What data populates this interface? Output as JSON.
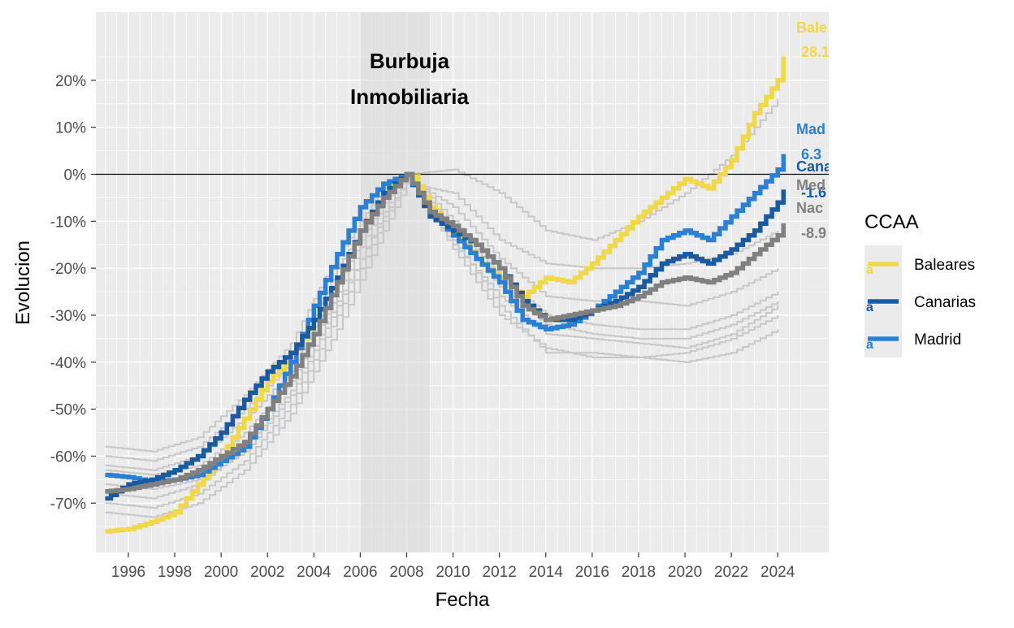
{
  "chart_data": {
    "type": "line",
    "title": "",
    "xlabel": "Fecha",
    "ylabel": "Evolucion",
    "xlim": [
      1994.6,
      2026.2
    ],
    "ylim": [
      -80.5,
      34.5
    ],
    "grid": true,
    "x_ticks": [
      1996,
      1998,
      2000,
      2002,
      2004,
      2006,
      2008,
      2010,
      2012,
      2014,
      2016,
      2018,
      2020,
      2022,
      2024
    ],
    "x_tick_labels": [
      "1996",
      "1998",
      "2000",
      "2002",
      "2004",
      "2006",
      "2008",
      "2010",
      "2012",
      "2014",
      "2016",
      "2018",
      "2020",
      "2022",
      "2024"
    ],
    "y_ticks": [
      20,
      10,
      0,
      -10,
      -20,
      -30,
      -40,
      -50,
      -60,
      -70
    ],
    "y_tick_labels": [
      "20%",
      "10%",
      "0%",
      "-10%",
      "-20%",
      "-30%",
      "-40%",
      "-50%",
      "-60%",
      "-70%"
    ],
    "shaded_period": {
      "start": 2006.0,
      "end": 2009.0,
      "label_line1": "Burbuja",
      "label_line2": "Inmobiliaria"
    },
    "reference_line_y": 0,
    "series": [
      {
        "name": "Baleares",
        "color": "#f0d84a",
        "end_label": "Bale",
        "end_value_label": "28.1",
        "points": [
          [
            1995,
            -76
          ],
          [
            1996,
            -75.5
          ],
          [
            1997,
            -74
          ],
          [
            1998,
            -72
          ],
          [
            1999,
            -66
          ],
          [
            2000,
            -60
          ],
          [
            2001,
            -52
          ],
          [
            2002,
            -44
          ],
          [
            2003,
            -39
          ],
          [
            2004,
            -31
          ],
          [
            2005,
            -22
          ],
          [
            2006,
            -12
          ],
          [
            2007,
            -4
          ],
          [
            2007.5,
            -1
          ],
          [
            2008.2,
            0
          ],
          [
            2009,
            -7
          ],
          [
            2010,
            -12
          ],
          [
            2011,
            -18
          ],
          [
            2012,
            -22
          ],
          [
            2013,
            -26
          ],
          [
            2014,
            -22
          ],
          [
            2015,
            -23
          ],
          [
            2016,
            -19
          ],
          [
            2017,
            -14
          ],
          [
            2018,
            -9
          ],
          [
            2019,
            -5
          ],
          [
            2020,
            -1
          ],
          [
            2021,
            -3
          ],
          [
            2022,
            3
          ],
          [
            2023,
            13
          ],
          [
            2024,
            20
          ],
          [
            2024.4,
            28.1
          ]
        ]
      },
      {
        "name": "Canarias",
        "color": "#1a5aa0",
        "end_label": "Cana",
        "end_value_label": "-1.6",
        "points": [
          [
            1995,
            -69
          ],
          [
            1996,
            -66
          ],
          [
            1997,
            -65
          ],
          [
            1998,
            -63
          ],
          [
            1999,
            -60
          ],
          [
            2000,
            -55
          ],
          [
            2001,
            -48
          ],
          [
            2002,
            -42
          ],
          [
            2003,
            -38
          ],
          [
            2004,
            -31
          ],
          [
            2005,
            -22
          ],
          [
            2006,
            -12
          ],
          [
            2007,
            -4
          ],
          [
            2008,
            0
          ],
          [
            2009,
            -9
          ],
          [
            2010,
            -12
          ],
          [
            2011,
            -15
          ],
          [
            2012,
            -20
          ],
          [
            2013,
            -27
          ],
          [
            2014,
            -31
          ],
          [
            2015,
            -31
          ],
          [
            2016,
            -29
          ],
          [
            2017,
            -27
          ],
          [
            2018,
            -24
          ],
          [
            2019,
            -19
          ],
          [
            2020,
            -17
          ],
          [
            2021,
            -19
          ],
          [
            2022,
            -16
          ],
          [
            2023,
            -12
          ],
          [
            2024,
            -6
          ],
          [
            2024.4,
            -1.6
          ]
        ]
      },
      {
        "name": "Madrid",
        "color": "#2b7fd4",
        "end_label": "Mad",
        "end_value_label": "6.3",
        "points": [
          [
            1995,
            -64
          ],
          [
            1996,
            -64.5
          ],
          [
            1997,
            -65.5
          ],
          [
            1998,
            -65
          ],
          [
            1999,
            -64
          ],
          [
            2000,
            -61
          ],
          [
            2001,
            -58
          ],
          [
            2002,
            -50
          ],
          [
            2003,
            -40
          ],
          [
            2004,
            -28
          ],
          [
            2005,
            -17
          ],
          [
            2006,
            -7
          ],
          [
            2007,
            -2
          ],
          [
            2008,
            0
          ],
          [
            2009,
            -8
          ],
          [
            2010,
            -13
          ],
          [
            2011,
            -18
          ],
          [
            2012,
            -23
          ],
          [
            2013,
            -31
          ],
          [
            2014,
            -33
          ],
          [
            2015,
            -32
          ],
          [
            2016,
            -29
          ],
          [
            2017,
            -25
          ],
          [
            2018,
            -21
          ],
          [
            2019,
            -14
          ],
          [
            2020,
            -12
          ],
          [
            2021,
            -14
          ],
          [
            2022,
            -9
          ],
          [
            2023,
            -4
          ],
          [
            2024,
            1
          ],
          [
            2024.4,
            6.3
          ]
        ]
      },
      {
        "name": "Nacional",
        "color": "#808080",
        "end_label": "Nac",
        "end_value_label": "-8.9",
        "points": [
          [
            1995,
            -67.5
          ],
          [
            1996,
            -67
          ],
          [
            1997,
            -66
          ],
          [
            1998,
            -65
          ],
          [
            1999,
            -63
          ],
          [
            2000,
            -60
          ],
          [
            2001,
            -57
          ],
          [
            2002,
            -50
          ],
          [
            2003,
            -43
          ],
          [
            2004,
            -34
          ],
          [
            2005,
            -23
          ],
          [
            2006,
            -12
          ],
          [
            2007,
            -5
          ],
          [
            2008,
            0
          ],
          [
            2009,
            -8
          ],
          [
            2010,
            -11
          ],
          [
            2011,
            -15
          ],
          [
            2012,
            -20
          ],
          [
            2013,
            -28
          ],
          [
            2014,
            -31
          ],
          [
            2015,
            -30
          ],
          [
            2016,
            -29
          ],
          [
            2017,
            -28
          ],
          [
            2018,
            -26
          ],
          [
            2019,
            -23
          ],
          [
            2020,
            -22
          ],
          [
            2021,
            -23
          ],
          [
            2022,
            -21
          ],
          [
            2023,
            -17
          ],
          [
            2024,
            -13
          ],
          [
            2024.4,
            -8.9
          ]
        ]
      },
      {
        "name": "Media",
        "color": "#808080",
        "end_label": "Med",
        "end_value_label": "",
        "points": []
      }
    ],
    "background_series": [
      [
        [
          1995,
          -60
        ],
        [
          1997,
          -61
        ],
        [
          1999,
          -58
        ],
        [
          2001,
          -50
        ],
        [
          2003,
          -40
        ],
        [
          2005,
          -20
        ],
        [
          2007,
          -4
        ],
        [
          2008,
          0
        ],
        [
          2010,
          -14
        ],
        [
          2012,
          -28
        ],
        [
          2014,
          -38
        ],
        [
          2016,
          -38
        ],
        [
          2018,
          -39
        ],
        [
          2020,
          -38
        ],
        [
          2022,
          -35
        ],
        [
          2024,
          -30
        ]
      ],
      [
        [
          1995,
          -63
        ],
        [
          1997,
          -64
        ],
        [
          1999,
          -62
        ],
        [
          2001,
          -55
        ],
        [
          2003,
          -44
        ],
        [
          2005,
          -25
        ],
        [
          2007,
          -6
        ],
        [
          2008,
          0
        ],
        [
          2010,
          -16
        ],
        [
          2012,
          -30
        ],
        [
          2014,
          -37
        ],
        [
          2016,
          -39
        ],
        [
          2018,
          -39
        ],
        [
          2020,
          -40
        ],
        [
          2022,
          -38
        ],
        [
          2024,
          -33
        ]
      ],
      [
        [
          1995,
          -66
        ],
        [
          1997,
          -67
        ],
        [
          1999,
          -65
        ],
        [
          2001,
          -59
        ],
        [
          2003,
          -47
        ],
        [
          2005,
          -28
        ],
        [
          2007,
          -8
        ],
        [
          2008,
          0
        ],
        [
          2010,
          -12
        ],
        [
          2012,
          -24
        ],
        [
          2014,
          -32
        ],
        [
          2016,
          -34
        ],
        [
          2018,
          -35
        ],
        [
          2020,
          -35
        ],
        [
          2022,
          -32
        ],
        [
          2024,
          -27
        ]
      ],
      [
        [
          1995,
          -70
        ],
        [
          1997,
          -71
        ],
        [
          1999,
          -68
        ],
        [
          2001,
          -61
        ],
        [
          2003,
          -49
        ],
        [
          2005,
          -30
        ],
        [
          2007,
          -10
        ],
        [
          2008,
          -1
        ],
        [
          2010,
          -7
        ],
        [
          2012,
          -18
        ],
        [
          2014,
          -26
        ],
        [
          2016,
          -27
        ],
        [
          2018,
          -27
        ],
        [
          2020,
          -28
        ],
        [
          2022,
          -25
        ],
        [
          2024,
          -20
        ]
      ],
      [
        [
          1995,
          -72
        ],
        [
          1997,
          -73
        ],
        [
          1999,
          -70
        ],
        [
          2001,
          -63
        ],
        [
          2003,
          -51
        ],
        [
          2005,
          -33
        ],
        [
          2007,
          -12
        ],
        [
          2008,
          -2
        ],
        [
          2010,
          -4
        ],
        [
          2012,
          -14
        ],
        [
          2014,
          -19
        ],
        [
          2016,
          -20
        ],
        [
          2018,
          -20
        ],
        [
          2020,
          -19
        ],
        [
          2022,
          -17
        ],
        [
          2024,
          -12
        ]
      ],
      [
        [
          1995,
          -58
        ],
        [
          1997,
          -59
        ],
        [
          1999,
          -56
        ],
        [
          2001,
          -47
        ],
        [
          2003,
          -36
        ],
        [
          2005,
          -17
        ],
        [
          2007,
          -3
        ],
        [
          2008,
          0
        ],
        [
          2010,
          1
        ],
        [
          2012,
          -4
        ],
        [
          2014,
          -12
        ],
        [
          2016,
          -14
        ],
        [
          2018,
          -10
        ],
        [
          2020,
          -4
        ],
        [
          2022,
          4
        ],
        [
          2024,
          16
        ]
      ],
      [
        [
          1995,
          -62
        ],
        [
          1997,
          -63
        ],
        [
          1999,
          -60
        ],
        [
          2001,
          -52
        ],
        [
          2003,
          -42
        ],
        [
          2005,
          -23
        ],
        [
          2007,
          -5
        ],
        [
          2008,
          0
        ],
        [
          2010,
          -10
        ],
        [
          2012,
          -22
        ],
        [
          2014,
          -30
        ],
        [
          2016,
          -32
        ],
        [
          2018,
          -33
        ],
        [
          2020,
          -33
        ],
        [
          2022,
          -30
        ],
        [
          2024,
          -25
        ]
      ],
      [
        [
          1995,
          -68
        ],
        [
          1997,
          -69
        ],
        [
          1999,
          -66
        ],
        [
          2001,
          -58
        ],
        [
          2003,
          -46
        ],
        [
          2005,
          -27
        ],
        [
          2007,
          -9
        ],
        [
          2008,
          -1
        ],
        [
          2010,
          -15
        ],
        [
          2012,
          -26
        ],
        [
          2014,
          -34
        ],
        [
          2016,
          -35
        ],
        [
          2018,
          -36
        ],
        [
          2020,
          -37
        ],
        [
          2022,
          -34
        ],
        [
          2024,
          -28
        ]
      ]
    ],
    "legend": {
      "title": "CCAA",
      "position": "right",
      "entries": [
        {
          "label": "Baleares",
          "color": "#f0d84a",
          "glyph": "a"
        },
        {
          "label": "Canarias",
          "color": "#1a5aa0",
          "glyph": "a"
        },
        {
          "label": "Madrid",
          "color": "#2b7fd4",
          "glyph": "a"
        }
      ]
    }
  }
}
